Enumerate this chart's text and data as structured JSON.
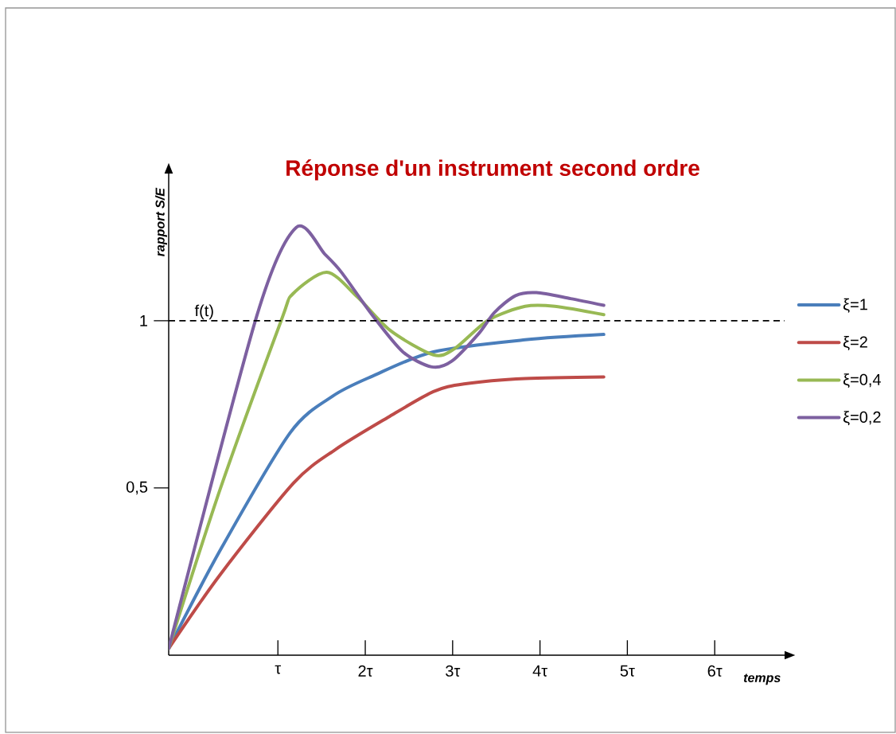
{
  "chart_data": {
    "type": "line",
    "title": "Réponse d'un instrument second ordre",
    "xlabel": "temps",
    "ylabel": "rapport S/E",
    "xlim": [
      -0.25,
      6.8
    ],
    "ylim": [
      0,
      1.44
    ],
    "xticks": [
      {
        "value": 1,
        "label": "τ"
      },
      {
        "value": 2,
        "label": "2τ"
      },
      {
        "value": 3,
        "label": "3τ"
      },
      {
        "value": 4,
        "label": "4τ"
      },
      {
        "value": 5,
        "label": "5τ"
      },
      {
        "value": 6,
        "label": "6τ"
      }
    ],
    "yticks": [
      {
        "value": 0.5,
        "label": "0,5"
      },
      1
    ],
    "legend": "right",
    "grid": false,
    "ref_lines": [
      {
        "axis": "y",
        "value": 1,
        "label": "f(t)",
        "color": "#000000",
        "line_style": "dashed"
      }
    ],
    "series": [
      {
        "name": "ξ=1",
        "color": "#4a7ebb",
        "x": [
          -0.25,
          0.34,
          1.14,
          1.63,
          2.08,
          2.78,
          3.83,
          4.73
        ],
        "values": [
          0.02,
          0.314,
          0.665,
          0.775,
          0.834,
          0.907,
          0.943,
          0.959
        ]
      },
      {
        "name": "ξ=2",
        "color": "#be4b48",
        "x": [
          -0.25,
          0.34,
          1.18,
          1.66,
          2.26,
          2.78,
          3.13,
          3.83,
          4.73
        ],
        "values": [
          0.02,
          0.241,
          0.515,
          0.615,
          0.711,
          0.788,
          0.811,
          0.827,
          0.832
        ]
      },
      {
        "name": "ξ=0,4",
        "color": "#98b954",
        "x": [
          -0.25,
          0.34,
          1.04,
          1.17,
          1.56,
          1.91,
          2.29,
          2.78,
          3.02,
          3.41,
          3.83,
          4.17,
          4.73
        ],
        "values": [
          0.02,
          0.497,
          1.002,
          1.08,
          1.145,
          1.071,
          0.97,
          0.898,
          0.916,
          1.002,
          1.043,
          1.043,
          1.018
        ]
      },
      {
        "name": "ξ=0,2",
        "color": "#7d60a0",
        "x": [
          -0.25,
          0.76,
          1.21,
          1.54,
          1.73,
          2.08,
          2.43,
          2.76,
          2.99,
          3.3,
          3.48,
          3.72,
          3.96,
          4.35,
          4.73
        ],
        "values": [
          0.02,
          1.016,
          1.279,
          1.198,
          1.144,
          1.017,
          0.907,
          0.862,
          0.879,
          0.962,
          1.025,
          1.075,
          1.084,
          1.066,
          1.046
        ]
      }
    ]
  }
}
